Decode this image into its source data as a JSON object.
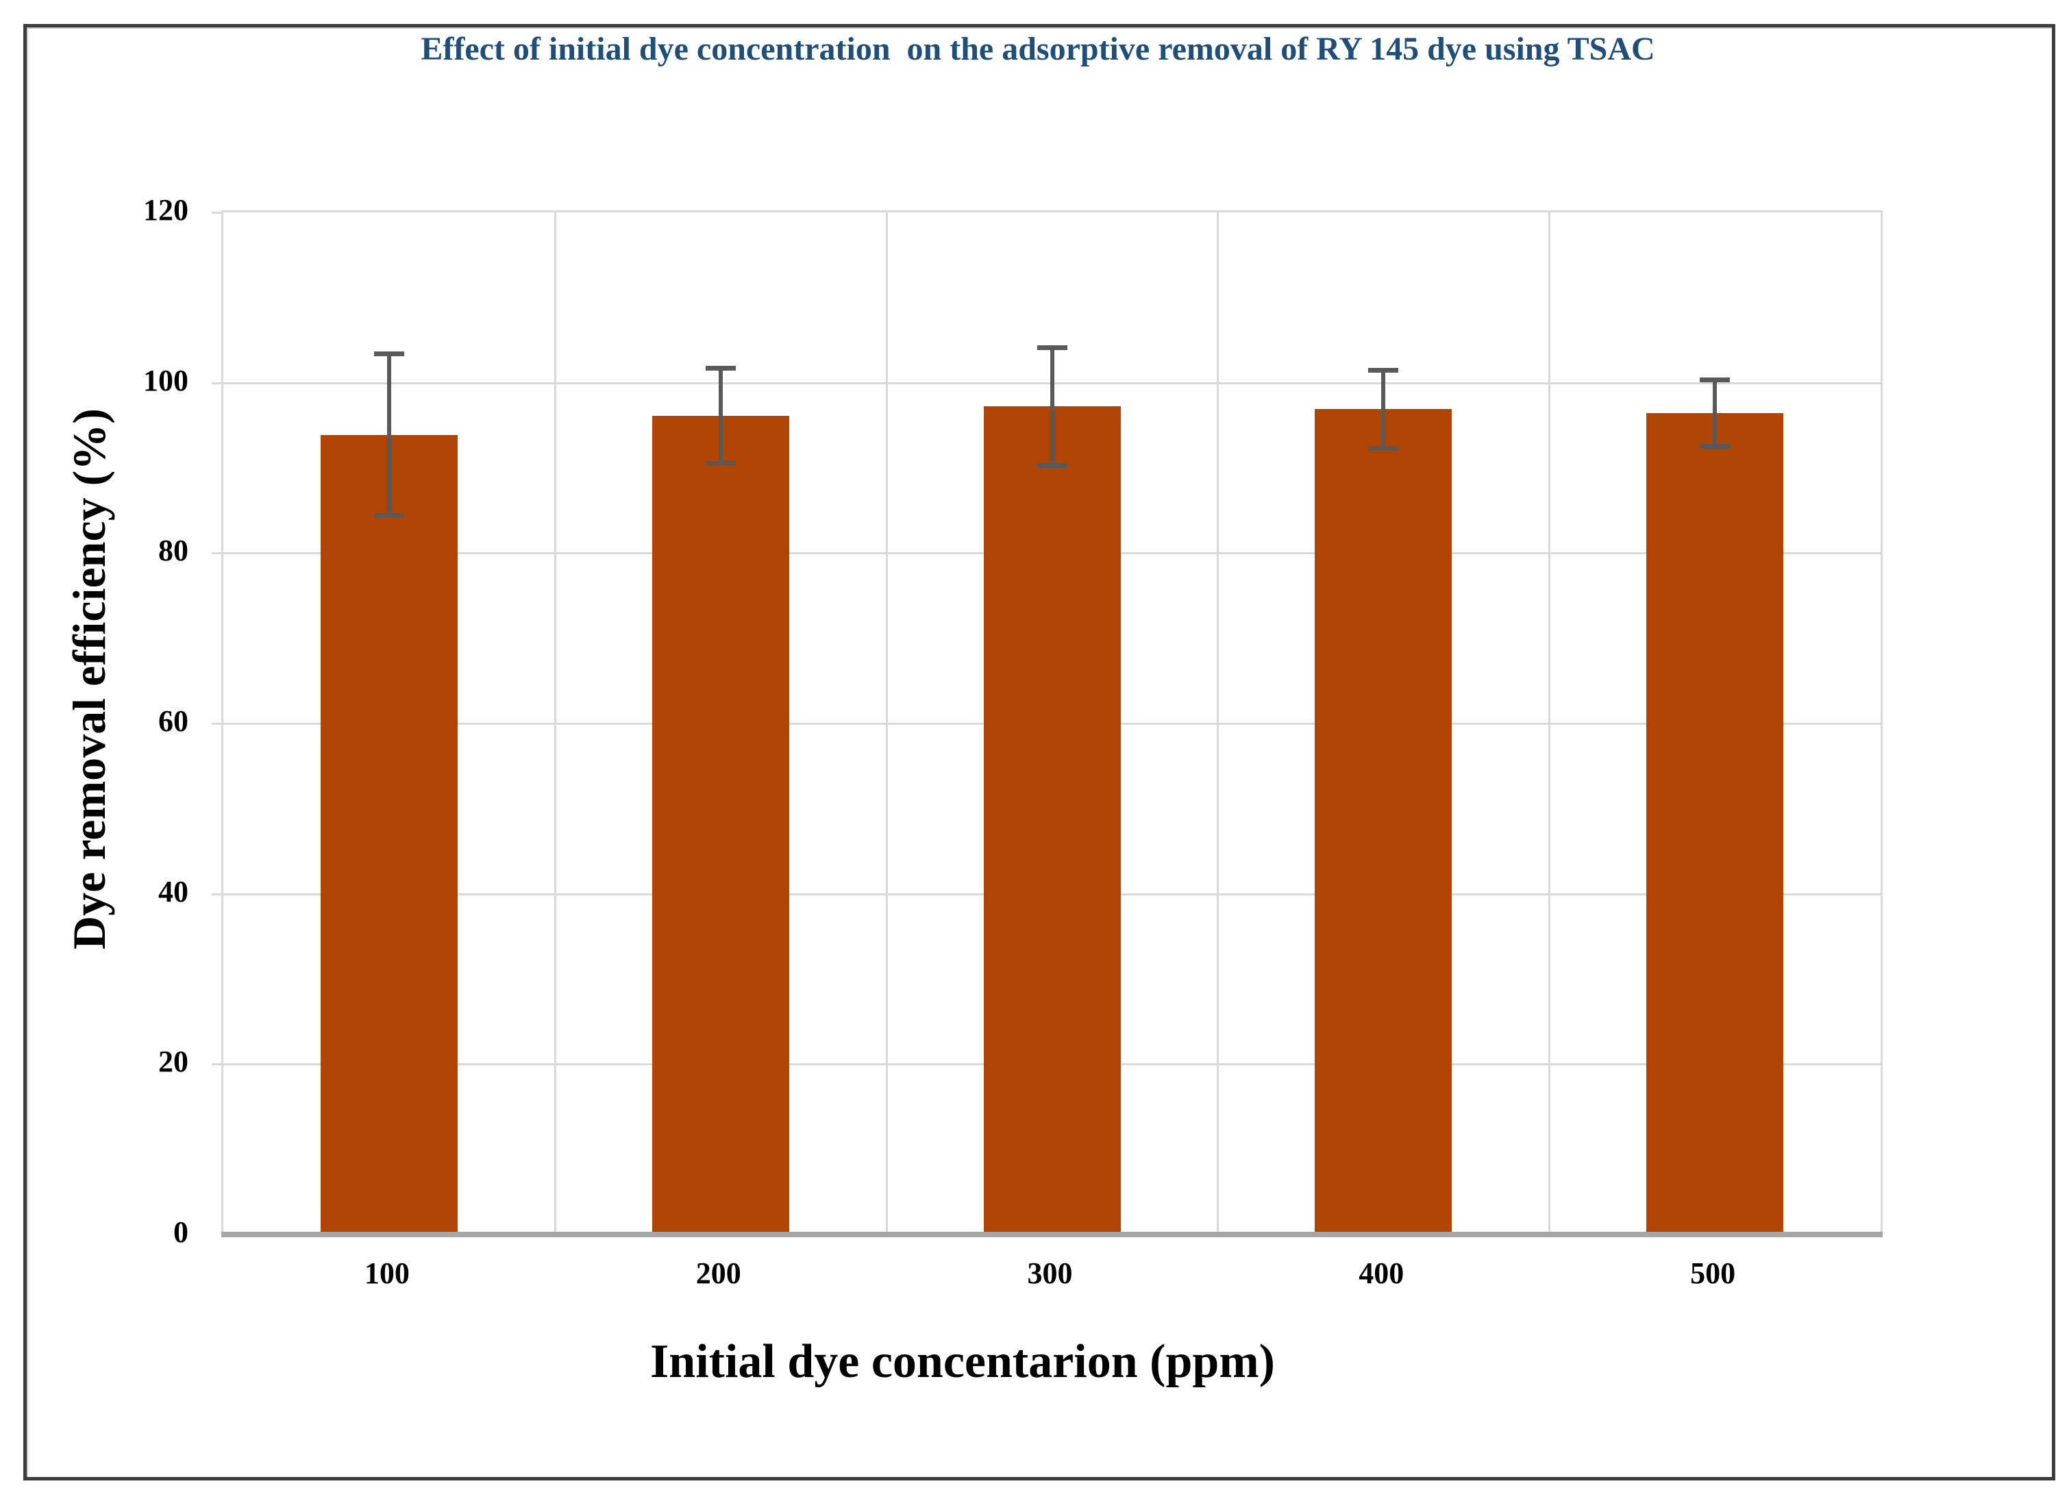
{
  "figure": {
    "title": "Effect of initial dye concentration  on the adsorptive removal of RY 145 dye using TSAC"
  },
  "chart_data": {
    "type": "bar",
    "title": "Effect of initial dye concentration  on the adsorptive removal of RY 145 dye using TSAC",
    "categories": [
      "100",
      "200",
      "300",
      "400",
      "500"
    ],
    "values": [
      93.9,
      96.1,
      97.2,
      96.9,
      96.4
    ],
    "error_bars": [
      9.5,
      5.6,
      6.9,
      4.6,
      3.9
    ],
    "series": [
      {
        "name": "Dye removal efficiency",
        "values": [
          93.9,
          96.1,
          97.2,
          96.9,
          96.4
        ]
      }
    ],
    "xlabel": "Initial dye concentarion (ppm)",
    "ylabel": "Dye removal efficiency (%)",
    "ylim": [
      0,
      120
    ],
    "yticks": [
      0,
      20,
      40,
      60,
      80,
      100,
      120
    ],
    "grid": true,
    "legend": false,
    "colors": {
      "bar": "#AF4403",
      "error_bar": "#595959",
      "gridline": "#D9D9D9",
      "axis_line": "#A6A6A6",
      "title": "#1F4E79",
      "tick_text": "#000000",
      "frame_border": "#3c3c3c"
    }
  }
}
